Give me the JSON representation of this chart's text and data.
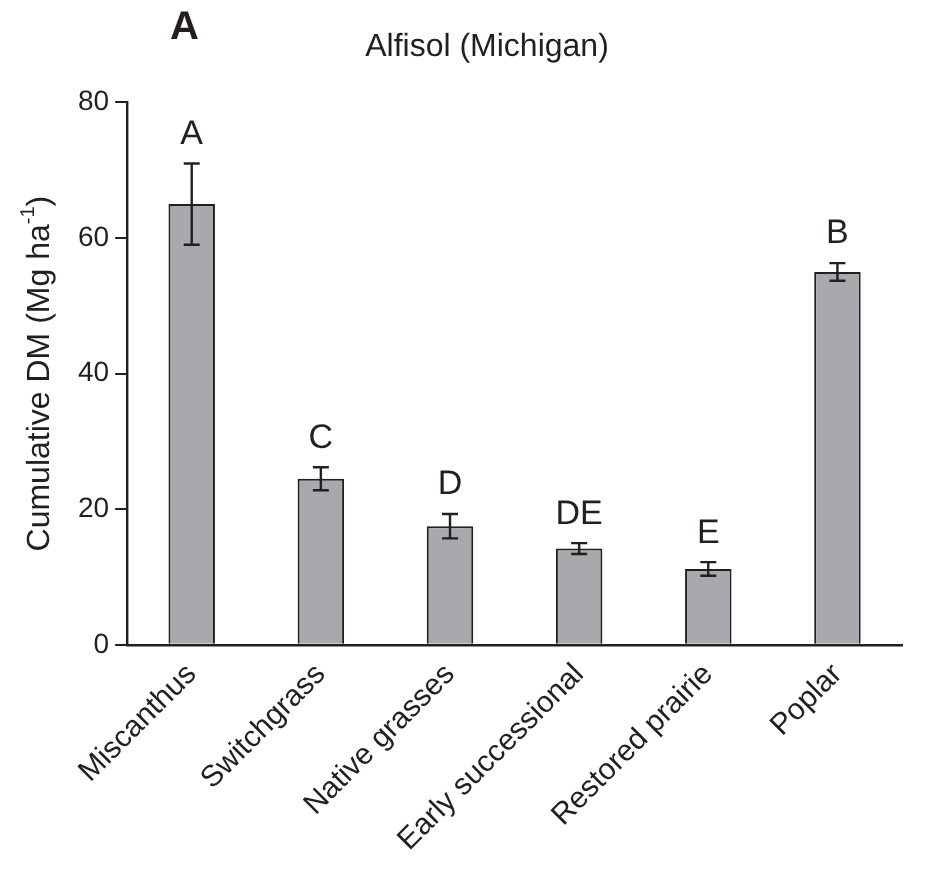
{
  "chart_data": {
    "type": "bar",
    "title": "Alfisol (Michigan)",
    "ylabel": "Cumulative DM (Mg ha$^{-1}$)",
    "categories": [
      "Miscanthus",
      "Switchgrass",
      "Native grasses",
      "Early successional",
      "Restored prairie",
      "Poplar"
    ],
    "values": [
      65,
      24.5,
      17.5,
      14.2,
      11.2,
      55
    ],
    "errors": [
      6,
      1.7,
      1.8,
      0.8,
      1,
      1.3
    ],
    "color": "#a7a9ac",
    "ylim": [
      0,
      80
    ],
    "yticks": [
      0,
      20,
      40,
      60,
      80
    ],
    "grid": false,
    "annotations": [
      "A",
      {
        "text": "A",
        "x": "Miscanthus",
        "y": 71
      },
      {
        "text": "C",
        "x": "Switchgrass",
        "y": 26.2
      },
      {
        "text": "D",
        "x": "Native grasses",
        "y": 19.3
      },
      {
        "text": "DE",
        "x": "Early successional",
        "y": 15
      },
      {
        "text": "E",
        "x": "Restored prairie",
        "y": 12.2
      },
      {
        "text": "B",
        "x": "Poplar",
        "y": 56.3
      }
    ]
  }
}
